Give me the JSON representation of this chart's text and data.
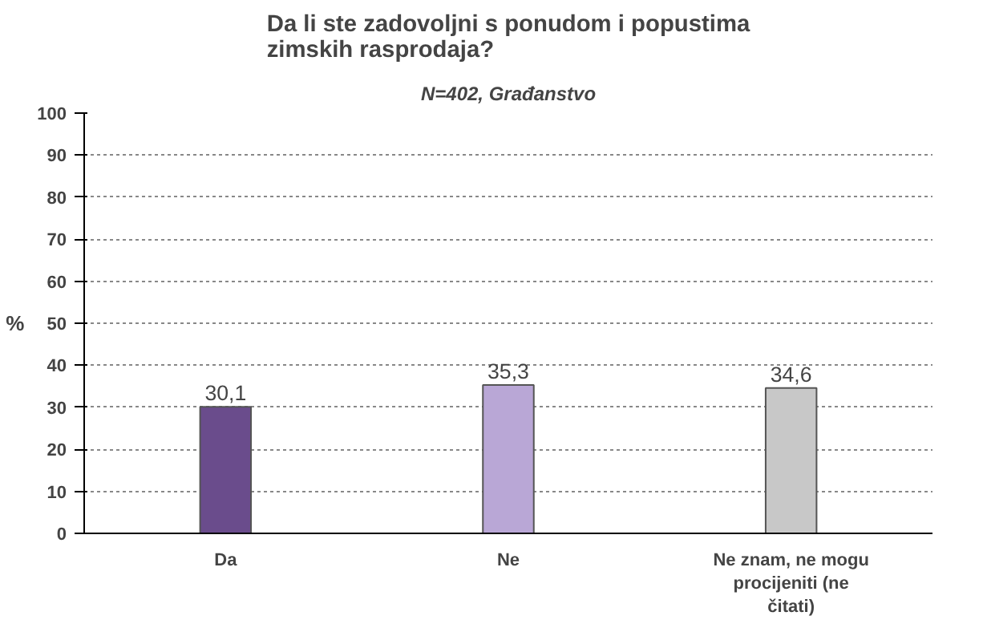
{
  "chart_data": {
    "type": "bar",
    "title": "Da li ste zadovoljni s ponudom i popustima zimskih rasprodaja?",
    "subtitle": "N=402, Građanstvo",
    "ylabel": "%",
    "categories": [
      "Da",
      "Ne",
      "Ne znam, ne mogu procijeniti (ne čitati)"
    ],
    "values": [
      30.1,
      35.3,
      34.6
    ],
    "value_labels": [
      "30,1",
      "35,3",
      "34,6"
    ],
    "colors": [
      "#6a4c8c",
      "#b9a7d6",
      "#c8c8c8"
    ],
    "ylim": [
      0,
      100
    ],
    "yticks": [
      0,
      10,
      20,
      30,
      40,
      50,
      60,
      70,
      80,
      90,
      100
    ],
    "grid": "y"
  }
}
